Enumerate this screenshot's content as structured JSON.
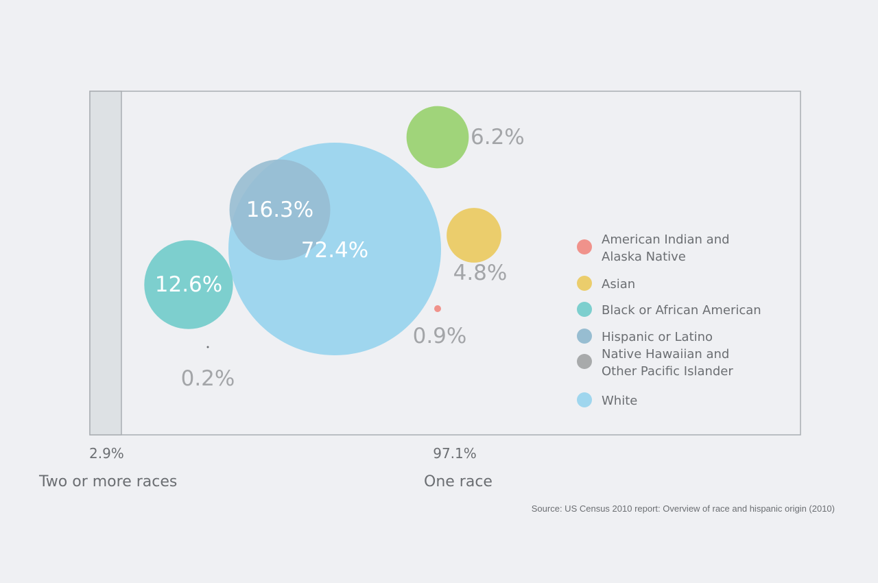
{
  "chart_data": {
    "type": "bubble",
    "source": "Source: US Census 2010 report: Overview of race and hispanic origin (2010)",
    "groups": [
      {
        "key": "two_or_more",
        "percent_label": "2.9%",
        "percent": 2.9,
        "name": "Two or more races"
      },
      {
        "key": "one_race",
        "percent_label": "97.1%",
        "percent": 97.1,
        "name": "One race"
      }
    ],
    "series": [
      {
        "key": "american_indian",
        "name": "American Indian and Alaska Native",
        "legend_lines": [
          "American Indian and",
          "Alaska Native"
        ],
        "value": 0.9,
        "label": "0.9%",
        "color": "#f0928b",
        "label_pos": "outside"
      },
      {
        "key": "asian",
        "name": "Asian",
        "legend_lines": [
          "Asian"
        ],
        "value": 4.8,
        "label": "4.8%",
        "color": "#ebcd6c",
        "label_pos": "outside"
      },
      {
        "key": "black",
        "name": "Black or African American",
        "legend_lines": [
          "Black or African American"
        ],
        "value": 12.6,
        "label": "12.6%",
        "color": "#7dcfce",
        "label_pos": "inside"
      },
      {
        "key": "hispanic",
        "name": "Hispanic or Latino",
        "legend_lines": [
          "Hispanic or Latino"
        ],
        "value": 16.3,
        "label": "16.3%",
        "color": "#97bdd1",
        "label_pos": "inside"
      },
      {
        "key": "native_hawaiian",
        "name": "Native Hawaiian and Other Pacific Islander",
        "legend_lines": [
          "Native Hawaiian and",
          "Other Pacific Islander"
        ],
        "value": 0.2,
        "label": "0.2%",
        "color": "#a8aaab",
        "label_pos": "outside"
      },
      {
        "key": "white",
        "name": "White",
        "legend_lines": [
          "White"
        ],
        "value": 72.4,
        "label": "72.4%",
        "color": "#9fd6ee",
        "label_pos": "inside"
      },
      {
        "key": "extra_green",
        "name": "",
        "legend_lines": [],
        "value": 6.2,
        "label": "6.2%",
        "color": "#a0d47a",
        "label_pos": "outside"
      }
    ]
  }
}
